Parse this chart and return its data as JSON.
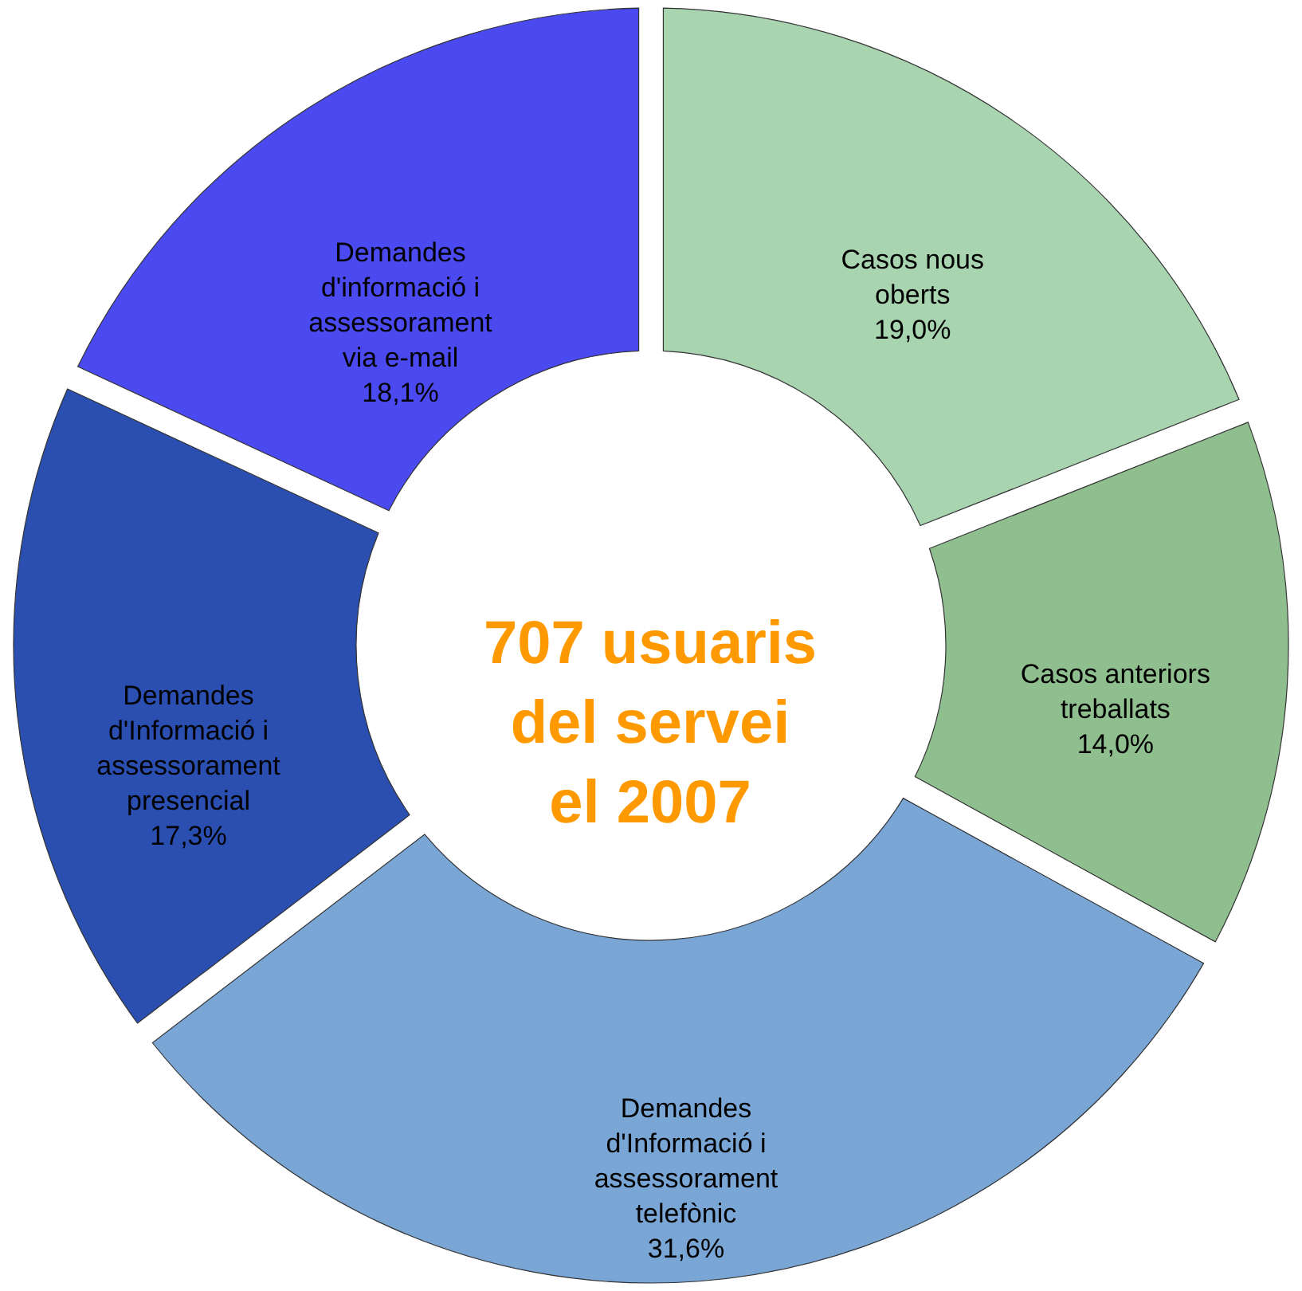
{
  "chart_data": {
    "type": "donut",
    "categories": [
      "Casos nous oberts",
      "Casos anteriors treballats",
      "Demandes d'Informació i assessorament telefònic",
      "Demandes d'Informació i assessorament presencial",
      "Demandes d'informació i assessorament via e-mail"
    ],
    "values": [
      19.0,
      14.0,
      31.6,
      17.3,
      18.1
    ],
    "value_labels": [
      "19,0%",
      "14,0%",
      "31,6%",
      "17,3%",
      "18,1%"
    ],
    "colors": [
      "#a8d4b0",
      "#8fbf8f",
      "#7aa6d6",
      "#2a4fb0",
      "#4a4af0"
    ],
    "annotations": [
      "707 usuaris del servei el 2007"
    ]
  }
}
